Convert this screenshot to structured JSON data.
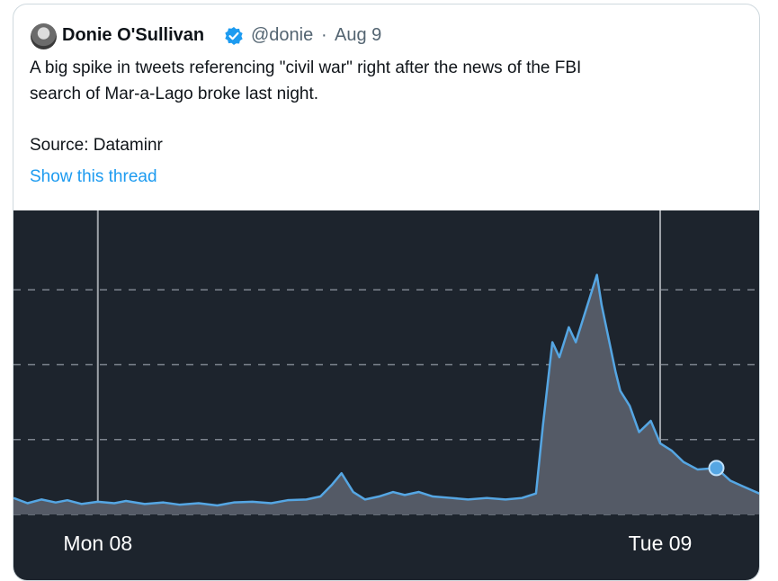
{
  "tweet": {
    "author": "Donie O'Sullivan",
    "handle": "@donie",
    "separator": "·",
    "date": "Aug 9",
    "text_lines": [
      "A big spike in tweets referencing \"civil war\" right after the news of the FBI",
      "search of Mar-a-Lago broke last night."
    ],
    "source": "Source: Dataminr",
    "thread_link": "Show this thread"
  },
  "chart_data": {
    "type": "area",
    "x": [
      -3.6,
      -3.0,
      -2.4,
      -1.8,
      -1.3,
      -0.7,
      0,
      0.7,
      1.2,
      2.0,
      2.8,
      3.5,
      4.3,
      5.1,
      5.8,
      6.6,
      7.4,
      8.1,
      8.9,
      9.5,
      10.0,
      10.4,
      10.9,
      11.4,
      12.0,
      12.6,
      13.1,
      13.7,
      14.3,
      15.1,
      15.8,
      16.6,
      17.4,
      18.1,
      18.7,
      19.0,
      19.4,
      19.7,
      20.1,
      20.4,
      20.7,
      21.0,
      21.3,
      21.5,
      21.8,
      22.1,
      22.3,
      22.7,
      23.1,
      23.6,
      24.0,
      24.5,
      25.0,
      25.6,
      26.4,
      27.0,
      27.5,
      28.3
    ],
    "values": [
      0.22,
      0.15,
      0.2,
      0.16,
      0.19,
      0.14,
      0.17,
      0.15,
      0.18,
      0.14,
      0.16,
      0.13,
      0.15,
      0.12,
      0.16,
      0.17,
      0.15,
      0.19,
      0.2,
      0.24,
      0.4,
      0.55,
      0.3,
      0.2,
      0.24,
      0.3,
      0.26,
      0.3,
      0.24,
      0.22,
      0.2,
      0.22,
      0.2,
      0.22,
      0.28,
      1.2,
      2.3,
      2.1,
      2.5,
      2.3,
      2.6,
      2.9,
      3.2,
      2.8,
      2.35,
      1.9,
      1.65,
      1.45,
      1.1,
      1.25,
      0.95,
      0.85,
      0.7,
      0.6,
      0.62,
      0.45,
      0.38,
      0.27
    ],
    "color": "#55a6e3",
    "xlim": [
      -3.6,
      28.3
    ],
    "xticks": [
      {
        "value": 0,
        "label": "Mon 08"
      },
      {
        "value": 24,
        "label": "Tue 09"
      }
    ],
    "ylim": [
      0,
      4.06
    ],
    "yticks": [
      0,
      1,
      2,
      3
    ],
    "grid": true,
    "highlight_index": 54
  }
}
